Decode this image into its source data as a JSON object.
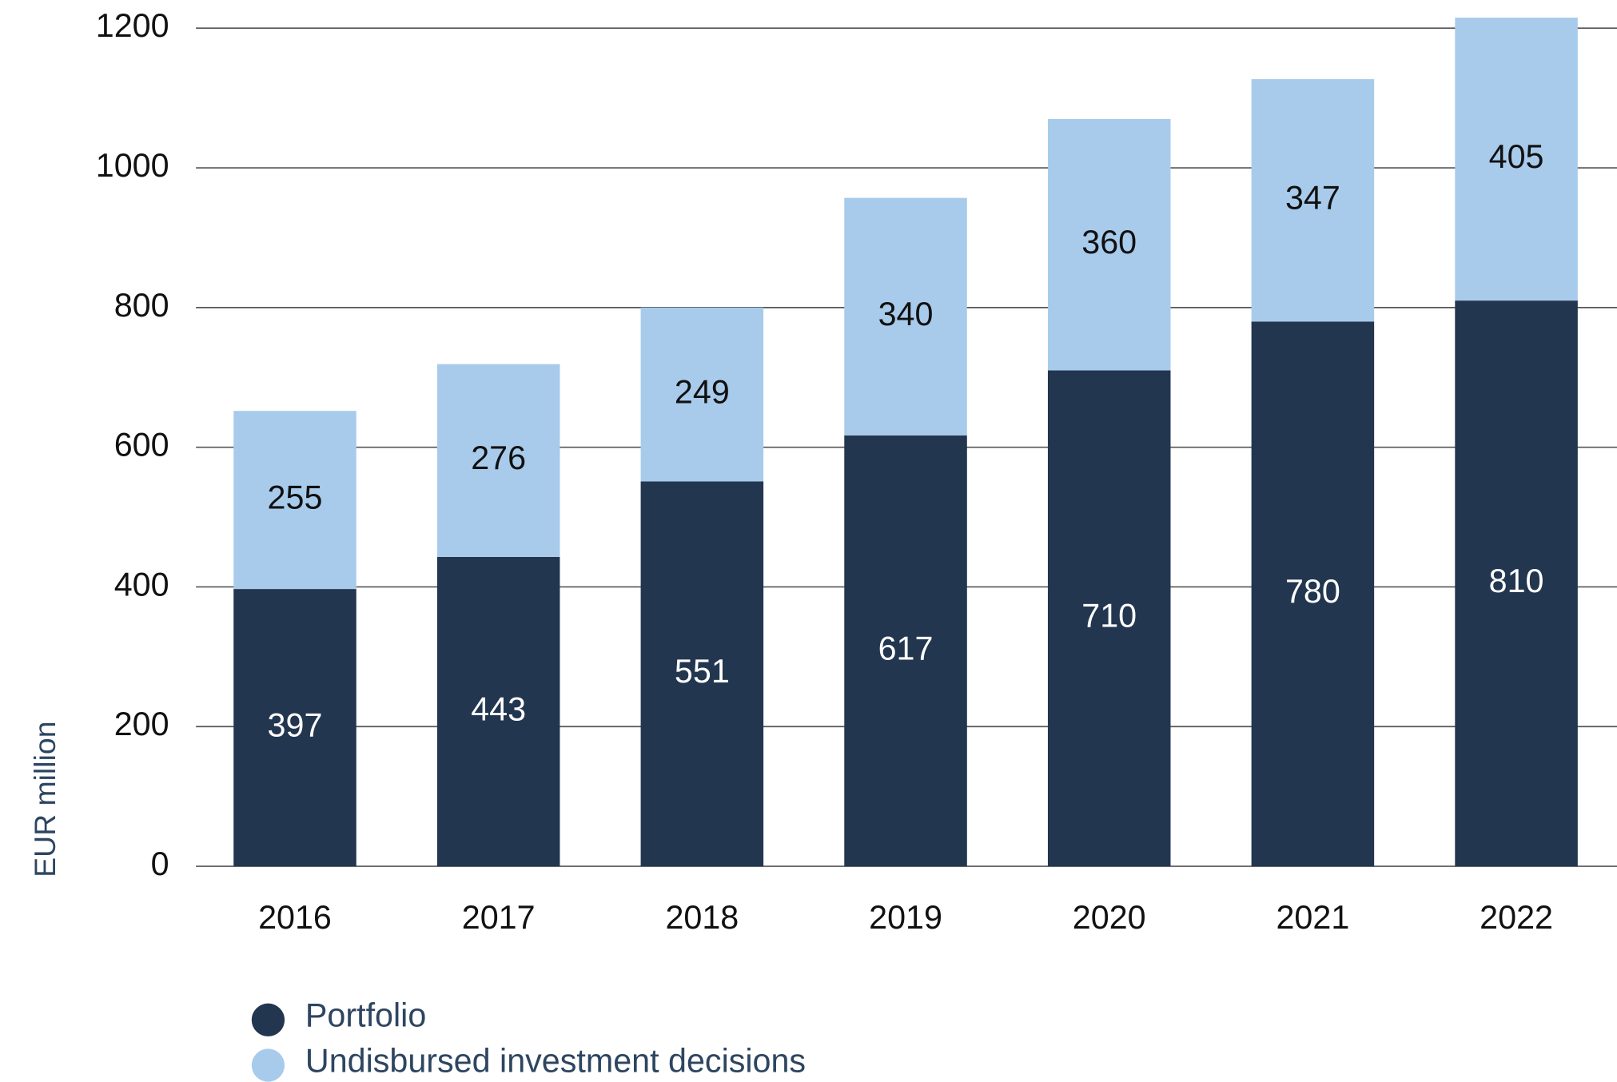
{
  "chart_data": {
    "type": "stacked_bar",
    "y_label": "EUR million",
    "categories": [
      "2016",
      "2017",
      "2018",
      "2019",
      "2020",
      "2021",
      "2022"
    ],
    "series": [
      {
        "name": "Portfolio",
        "color": "#22364f",
        "values": [
          397,
          443,
          551,
          617,
          710,
          780,
          810
        ]
      },
      {
        "name": "Undisbursed investment decisions",
        "color": "#a8cbeb",
        "values": [
          255,
          276,
          249,
          340,
          360,
          347,
          405
        ]
      }
    ],
    "ylim": [
      0,
      1240
    ],
    "yticks": [
      0,
      200,
      400,
      600,
      800,
      1000,
      1200
    ],
    "grid": true,
    "legend": "bottom"
  }
}
